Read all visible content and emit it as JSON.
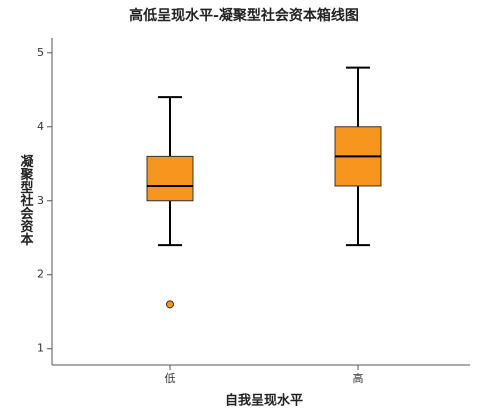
{
  "chart_data": {
    "type": "box",
    "title": "高低呈现水平-凝聚型社会资本箱线图",
    "x_label": "自我呈现水平",
    "y_label": "凝聚型社会资本",
    "categories": [
      "低",
      "高"
    ],
    "color": "#f7961e",
    "min": [
      2.4,
      2.4
    ],
    "q1": [
      3.0,
      3.2
    ],
    "median": [
      3.2,
      3.6
    ],
    "q3": [
      3.6,
      4.0
    ],
    "max": [
      4.4,
      4.8
    ],
    "outliers": [
      [
        1.6
      ],
      []
    ],
    "ylim": [
      0.78,
      5.2
    ],
    "yticks": [
      1,
      2,
      3,
      4,
      5
    ]
  }
}
